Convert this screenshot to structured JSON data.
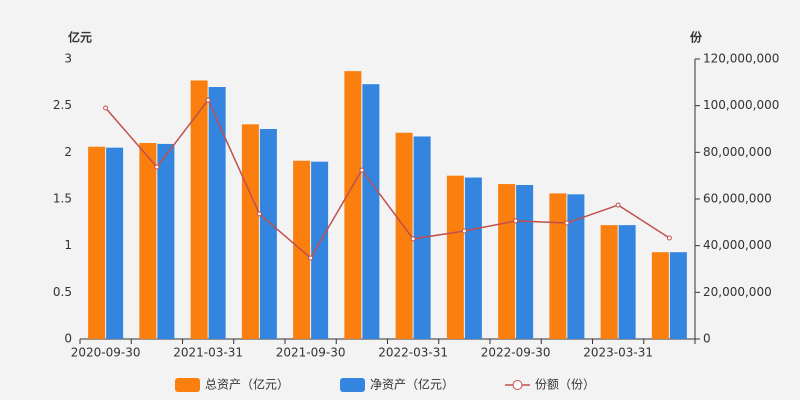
{
  "chart_data": {
    "type": "bar",
    "y_label": "亿元",
    "y2_label": "份",
    "categories": [
      "2020-09-30",
      null,
      "2021-03-31",
      null,
      "2021-09-30",
      null,
      "2022-03-31",
      null,
      "2022-09-30",
      null,
      "2023-03-31",
      null
    ],
    "series": [
      {
        "name": "总资产（亿元）",
        "color": "#fa7f0e",
        "values": [
          2.06,
          2.1,
          2.77,
          2.3,
          1.91,
          2.87,
          2.21,
          1.75,
          1.66,
          1.56,
          1.22,
          0.93
        ]
      },
      {
        "name": "净资产（亿元）",
        "color": "#3385e0",
        "values": [
          2.05,
          2.09,
          2.7,
          2.25,
          1.9,
          2.73,
          2.17,
          1.73,
          1.65,
          1.55,
          1.22,
          0.93
        ]
      },
      {
        "name": "份额（份）",
        "color": "#c0504d",
        "type": "line",
        "axis": "y2",
        "values": [
          99000000,
          73700000,
          102400000,
          53600000,
          34700000,
          72400000,
          42900000,
          46300000,
          50600000,
          49700000,
          57400000,
          43300000
        ]
      }
    ],
    "ylim": [
      0,
      3
    ],
    "yticks": [
      0,
      0.5,
      1,
      1.5,
      2,
      2.5,
      3
    ],
    "y2lim": [
      0,
      120000000
    ],
    "y2ticks": [
      0,
      {
        "value": 20000000,
        "label": "20,000,000"
      },
      {
        "value": 40000000,
        "label": "40,000,000"
      },
      {
        "value": 60000000,
        "label": "60,000,000"
      },
      {
        "value": 80000000,
        "label": "80,000,000"
      },
      {
        "value": 100000000,
        "label": "100,000,000"
      },
      {
        "value": 120000000,
        "label": "120,000,000"
      }
    ],
    "grid": false
  }
}
